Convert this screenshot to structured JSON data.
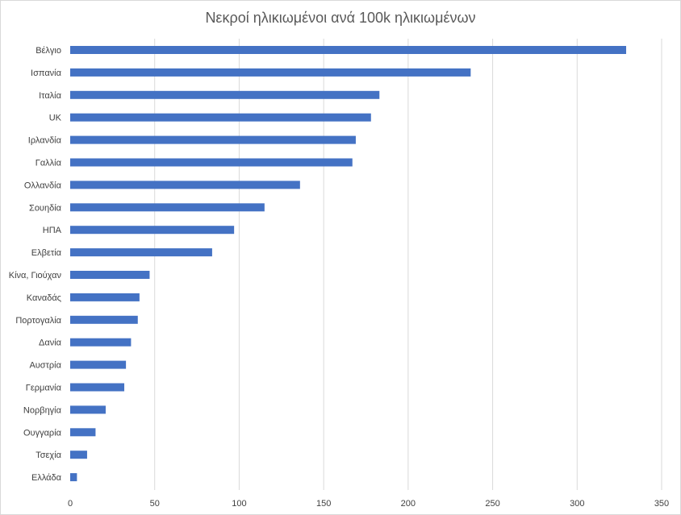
{
  "chart_data": {
    "type": "bar",
    "orientation": "horizontal",
    "title": "Νεκροί ηλικιωμένοι ανά 100k ηλικιωμένων",
    "categories": [
      "Βέλγιο",
      "Ισπανία",
      "Ιταλία",
      "UK",
      "Ιρλανδία",
      "Γαλλία",
      "Ολλανδία",
      "Σουηδία",
      "ΗΠΑ",
      "Ελβετία",
      "Κίνα, Γιούχαν",
      "Καναδάς",
      "Πορτογαλία",
      "Δανία",
      "Αυστρία",
      "Γερμανία",
      "Νορβηγία",
      "Ουγγαρία",
      "Τσεχία",
      "Ελλάδα"
    ],
    "values": [
      329,
      237,
      183,
      178,
      169,
      167,
      136,
      115,
      97,
      84,
      47,
      41,
      40,
      36,
      33,
      32,
      21,
      15,
      10,
      4
    ],
    "xlim": [
      0,
      350
    ],
    "xticks": [
      0,
      50,
      100,
      150,
      200,
      250,
      300,
      350
    ],
    "xlabel": "",
    "ylabel": "",
    "grid": "vertical",
    "legend": "none",
    "bar_color": "#4472c4"
  }
}
